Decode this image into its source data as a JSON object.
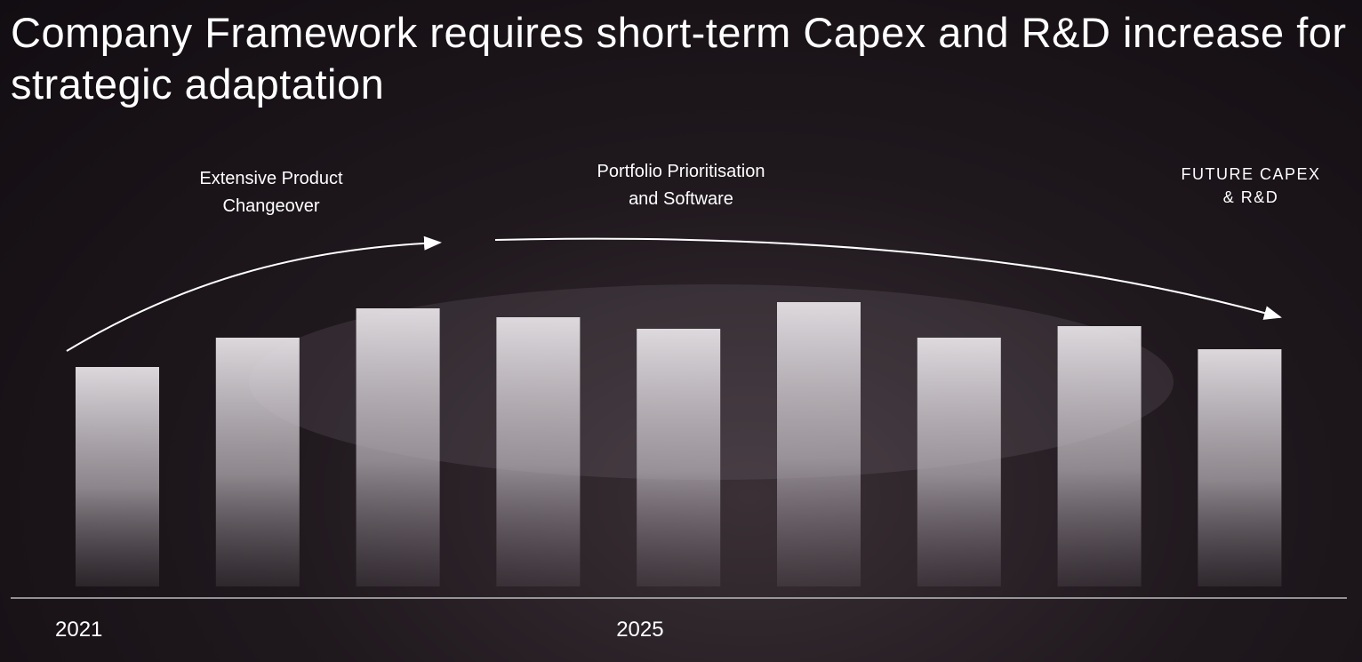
{
  "chart_data": {
    "type": "bar",
    "title": "Company Framework requires short-term Capex and R&D increase for strategic adaptation",
    "categories": [
      "2021",
      null,
      null,
      null,
      "2025",
      null,
      null,
      null,
      null
    ],
    "values": [
      247,
      280,
      313,
      303,
      290,
      320,
      280,
      293,
      267
    ],
    "annotations": [
      [
        "Extensive Product",
        "Changeover"
      ],
      [
        "Portfolio Prioritisation",
        "and Software"
      ],
      [
        "FUTURE CAPEX",
        "& R&D"
      ]
    ]
  }
}
